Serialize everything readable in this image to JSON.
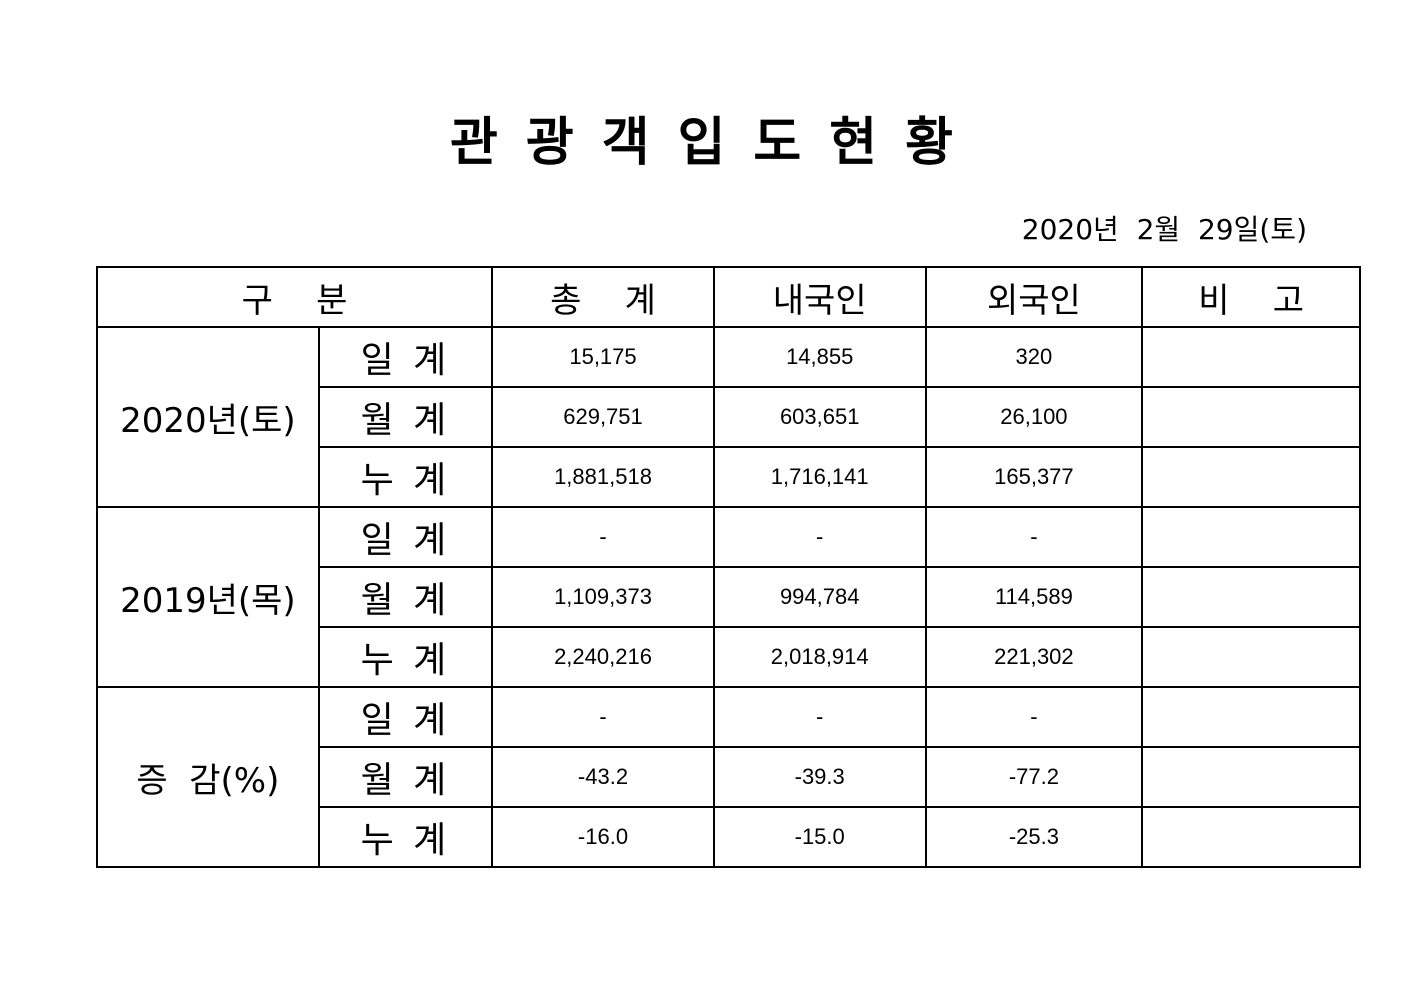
{
  "document": {
    "title": "관광객입도현황",
    "date": "2020년  2월  29일(토)"
  },
  "table": {
    "headers": {
      "category": "구    분",
      "total": "총    계",
      "domestic": "내국인",
      "foreign": "외국인",
      "note": "비    고"
    },
    "groups": [
      {
        "label": "2020년(토)",
        "rows": [
          {
            "label": "일 계",
            "total": "15,175",
            "domestic": "14,855",
            "foreign": "320",
            "note": ""
          },
          {
            "label": "월 계",
            "total": "629,751",
            "domestic": "603,651",
            "foreign": "26,100",
            "note": ""
          },
          {
            "label": "누 계",
            "total": "1,881,518",
            "domestic": "1,716,141",
            "foreign": "165,377",
            "note": ""
          }
        ]
      },
      {
        "label": "2019년(목)",
        "rows": [
          {
            "label": "일 계",
            "total": "-",
            "domestic": "-",
            "foreign": "-",
            "note": ""
          },
          {
            "label": "월 계",
            "total": "1,109,373",
            "domestic": "994,784",
            "foreign": "114,589",
            "note": ""
          },
          {
            "label": "누 계",
            "total": "2,240,216",
            "domestic": "2,018,914",
            "foreign": "221,302",
            "note": ""
          }
        ]
      },
      {
        "label": "증  감(%)",
        "rows": [
          {
            "label": "일 계",
            "total": "-",
            "domestic": "-",
            "foreign": "-",
            "note": ""
          },
          {
            "label": "월 계",
            "total": "-43.2",
            "domestic": "-39.3",
            "foreign": "-77.2",
            "note": ""
          },
          {
            "label": "누 계",
            "total": "-16.0",
            "domestic": "-15.0",
            "foreign": "-25.3",
            "note": ""
          }
        ]
      }
    ]
  }
}
